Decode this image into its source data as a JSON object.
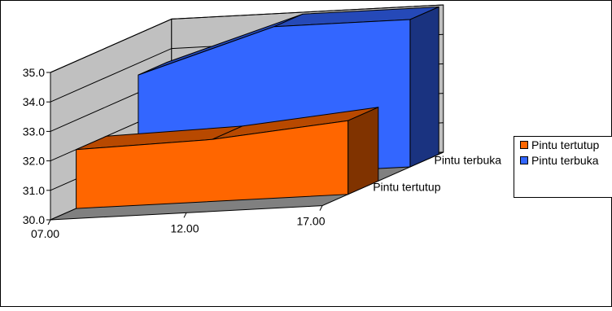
{
  "chart_data": {
    "type": "area",
    "variant": "3d",
    "title": "",
    "xlabel": "",
    "ylabel": "",
    "categories": [
      "07.00",
      "12.00",
      "17.00"
    ],
    "depth_labels": [
      "Pintu tertutup",
      "Pintu terbuka"
    ],
    "series": [
      {
        "name": "Pintu tertutup",
        "values": [
          32.0,
          32.1,
          32.5
        ],
        "color": "#ff6600"
      },
      {
        "name": "Pintu terbuka",
        "values": [
          33.6,
          35.0,
          35.0
        ],
        "color": "#3366ff"
      }
    ],
    "ylim": [
      30.0,
      35.0
    ],
    "yticks": [
      "30.0",
      "31.0",
      "32.0",
      "33.0",
      "34.0",
      "35.0"
    ],
    "grid": true,
    "legend_position": "right",
    "wall_color": "#c0c0c0",
    "floor_color": "#808080"
  }
}
